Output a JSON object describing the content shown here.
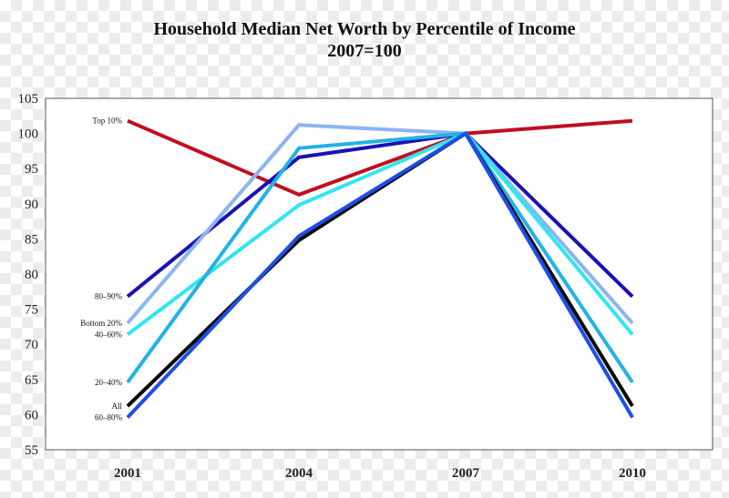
{
  "chart_data": {
    "type": "line",
    "title": "Household Median Net Worth by Percentile of Income",
    "subtitle": "2007=100",
    "categories": [
      "2001",
      "2004",
      "2007",
      "2010"
    ],
    "ylim": [
      55,
      105
    ],
    "yticks": [
      55,
      60,
      65,
      70,
      75,
      80,
      85,
      90,
      95,
      100,
      105
    ],
    "grid": false,
    "series": [
      {
        "name": "Top 10%",
        "color": "#c00f1e",
        "values": [
          101.8,
          91.3,
          100,
          101.8
        ]
      },
      {
        "name": "80–90%",
        "color": "#1a12b4",
        "values": [
          76.8,
          96.6,
          100,
          76.8
        ]
      },
      {
        "name": "Bottom 20%",
        "color": "#8cb4f0",
        "values": [
          73.0,
          101.2,
          100,
          73.0
        ]
      },
      {
        "name": "40–60%",
        "color": "#30e6f0",
        "values": [
          71.4,
          89.8,
          100,
          71.4
        ]
      },
      {
        "name": "20–40%",
        "color": "#22b2e6",
        "values": [
          64.6,
          97.9,
          100,
          64.6
        ]
      },
      {
        "name": "All",
        "color": "#0a0a0a",
        "values": [
          61.2,
          84.8,
          100,
          61.2
        ]
      },
      {
        "name": "60–80%",
        "color": "#1e4ee6",
        "values": [
          59.6,
          85.4,
          100,
          59.6
        ]
      }
    ]
  }
}
